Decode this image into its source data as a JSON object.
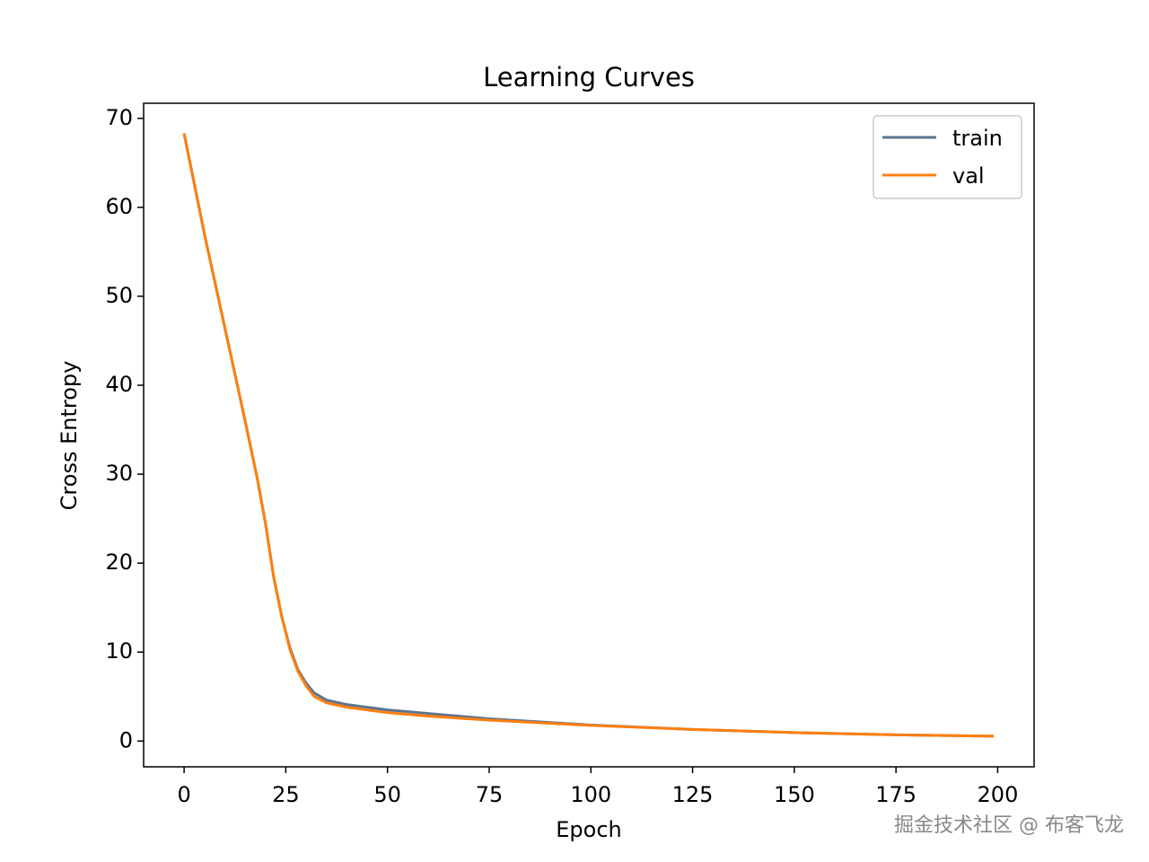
{
  "chart_data": {
    "type": "line",
    "title": "Learning Curves",
    "xlabel": "Epoch",
    "ylabel": "Cross Entropy",
    "x": [
      0,
      5,
      10,
      15,
      18,
      20,
      22,
      24,
      26,
      28,
      30,
      32,
      35,
      40,
      45,
      50,
      60,
      75,
      100,
      125,
      150,
      175,
      199
    ],
    "series": [
      {
        "name": "train",
        "color": "#5b7490",
        "values": [
          68.3,
          57,
          46.5,
          36,
          29.5,
          24.5,
          18.5,
          14,
          10.5,
          8,
          6.5,
          5.4,
          4.6,
          4.1,
          3.8,
          3.5,
          3.1,
          2.5,
          1.8,
          1.3,
          0.95,
          0.7,
          0.55
        ]
      },
      {
        "name": "val",
        "color": "#ff7f0e",
        "values": [
          68.3,
          57,
          46.5,
          36,
          29.5,
          24.5,
          18.5,
          14,
          10.3,
          7.8,
          6.2,
          5.0,
          4.3,
          3.8,
          3.5,
          3.2,
          2.8,
          2.35,
          1.75,
          1.3,
          0.95,
          0.7,
          0.55
        ]
      }
    ],
    "xlim": [
      -9.95,
      208.95
    ],
    "ylim": [
      -2.9,
      71.7
    ],
    "xticks": [
      0,
      25,
      50,
      75,
      100,
      125,
      150,
      175,
      200
    ],
    "yticks": [
      0,
      10,
      20,
      30,
      40,
      50,
      60,
      70
    ],
    "legend": "upper right",
    "watermark": "掘金技术社区 @ 布客飞龙"
  }
}
